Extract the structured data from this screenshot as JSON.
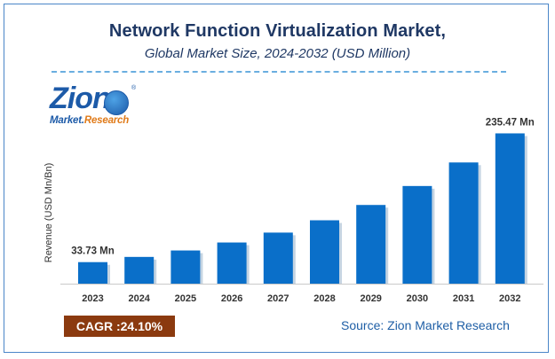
{
  "header": {
    "title": "Network Function Virtualization Market,",
    "subtitle": "Global Market Size, 2024-2032 (USD Million)"
  },
  "logo": {
    "name": "Zion",
    "sub_left": "Market.",
    "sub_right": "Research"
  },
  "footer": {
    "cagr_label": "CAGR :",
    "cagr_value": "24.10%",
    "source": "Source: Zion Market Research"
  },
  "colors": {
    "bar": "#0a6fc9",
    "title": "#1f3864",
    "cagr_bg": "#8b3a0f",
    "source": "#1f5fa6"
  },
  "chart_data": {
    "type": "bar",
    "title": "Network Function Virtualization Market,",
    "subtitle": "Global Market Size, 2024-2032 (USD Million)",
    "xlabel": "",
    "ylabel": "Revenue (USD Mn/Bn)",
    "categories": [
      "2023",
      "2024",
      "2025",
      "2026",
      "2027",
      "2028",
      "2029",
      "2030",
      "2031",
      "2032"
    ],
    "values": [
      33.73,
      41.9,
      52.0,
      64.5,
      80.0,
      99.3,
      123.3,
      153.0,
      189.9,
      235.47
    ],
    "data_labels": [
      {
        "index": 0,
        "text": "33.73 Mn"
      },
      {
        "index": 9,
        "text": "235.47 Mn"
      }
    ],
    "ylim": [
      0,
      250
    ],
    "grid": false,
    "legend": "none"
  }
}
